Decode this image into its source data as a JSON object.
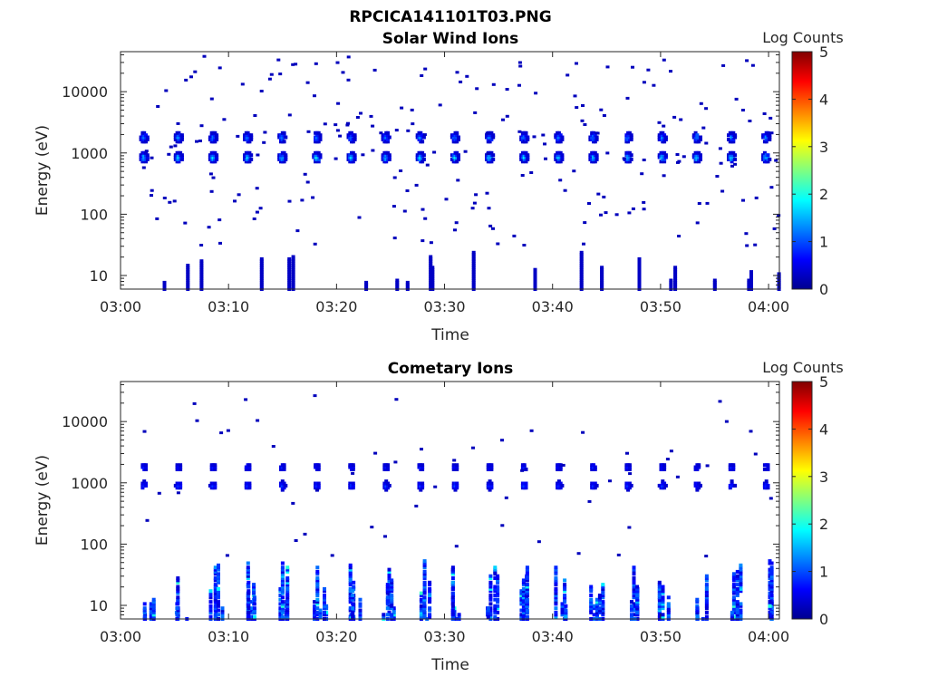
{
  "figure": {
    "title": "RPCICA141101T03.PNG"
  },
  "chart_data": [
    {
      "type": "heatmap",
      "title": "Solar Wind Ions",
      "xlabel": "Time",
      "ylabel": "Energy (eV)",
      "x_ticks": [
        "03:00",
        "03:10",
        "03:20",
        "03:30",
        "03:40",
        "03:50",
        "04:00"
      ],
      "x_range_minutes": [
        0,
        61
      ],
      "y_ticks": [
        "10",
        "100",
        "1000",
        "10000"
      ],
      "y_scale": "log",
      "y_range": [
        6,
        45000
      ],
      "colorbar": {
        "label": "Log Counts",
        "ticks": [
          "0",
          "1",
          "2",
          "3",
          "4",
          "5"
        ],
        "range": [
          0,
          5
        ],
        "colormap": "jet"
      },
      "sweep_period_minutes": 3.2,
      "sweep_start_minutes": 2.2,
      "main_peaks": [
        {
          "energy_eV": 850,
          "peak_log_counts": 2.0
        },
        {
          "energy_eV": 1800,
          "peak_log_counts": 1.5
        }
      ],
      "sparse_counts": "scattered single-count pixels between 30 and 40000 eV",
      "low_energy_columns": "intermittent 1-count columns between 6 and 25 eV"
    },
    {
      "type": "heatmap",
      "title": "Cometary Ions",
      "xlabel": "Time",
      "ylabel": "Energy (eV)",
      "x_ticks": [
        "03:00",
        "03:10",
        "03:20",
        "03:30",
        "03:40",
        "03:50",
        "04:00"
      ],
      "x_range_minutes": [
        0,
        61
      ],
      "y_ticks": [
        "10",
        "100",
        "1000",
        "10000"
      ],
      "y_scale": "log",
      "y_range": [
        6,
        45000
      ],
      "colorbar": {
        "label": "Log Counts",
        "ticks": [
          "0",
          "1",
          "2",
          "3",
          "4",
          "5"
        ],
        "range": [
          0,
          5
        ],
        "colormap": "jet"
      },
      "sweep_period_minutes": 3.2,
      "sweep_start_minutes": 2.2,
      "main_peaks": [
        {
          "energy_eV": 900,
          "peak_log_counts": 1.0
        },
        {
          "energy_eV": 1800,
          "peak_log_counts": 0.8
        }
      ],
      "low_energy_band": {
        "energy_range_eV": [
          6,
          60
        ],
        "peak_log_counts": 1.8
      },
      "sparse_counts": "scattered single-count pixels between 60 and 30000 eV"
    }
  ]
}
